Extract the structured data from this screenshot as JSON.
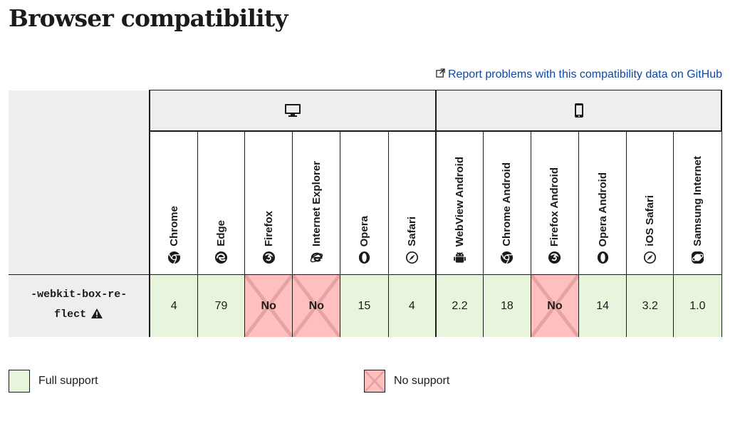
{
  "page": {
    "heading": "Browser compatibility"
  },
  "report_link": {
    "label": "Report problems with this compatibility data on GitHub",
    "icon": "external-link-icon"
  },
  "platforms": {
    "desktop": {
      "icon": "desktop-icon"
    },
    "mobile": {
      "icon": "mobile-icon"
    }
  },
  "browsers": [
    {
      "name": "Chrome",
      "icon": "chrome-icon",
      "platform": "desktop"
    },
    {
      "name": "Edge",
      "icon": "edge-icon",
      "platform": "desktop"
    },
    {
      "name": "Firefox",
      "icon": "firefox-icon",
      "platform": "desktop"
    },
    {
      "name": "Internet Explorer",
      "icon": "internet-explorer-icon",
      "platform": "desktop"
    },
    {
      "name": "Opera",
      "icon": "opera-icon",
      "platform": "desktop"
    },
    {
      "name": "Safari",
      "icon": "safari-icon",
      "platform": "desktop"
    },
    {
      "name": "WebView Android",
      "icon": "android-icon",
      "platform": "mobile"
    },
    {
      "name": "Chrome Android",
      "icon": "chrome-icon",
      "platform": "mobile"
    },
    {
      "name": "Firefox Android",
      "icon": "firefox-icon",
      "platform": "mobile"
    },
    {
      "name": "Opera Android",
      "icon": "opera-icon",
      "platform": "mobile"
    },
    {
      "name": "iOS Safari",
      "icon": "safari-icon",
      "platform": "mobile"
    },
    {
      "name": "Samsung Internet",
      "icon": "samsung-internet-icon",
      "platform": "mobile"
    }
  ],
  "feature": {
    "name_line1": "-webkit-box-re-",
    "name_line2": "flect",
    "warning_icon": "warning-icon",
    "support": [
      {
        "value": "4",
        "status": "yes"
      },
      {
        "value": "79",
        "status": "yes"
      },
      {
        "value": "No",
        "status": "no"
      },
      {
        "value": "No",
        "status": "no"
      },
      {
        "value": "15",
        "status": "yes"
      },
      {
        "value": "4",
        "status": "yes"
      },
      {
        "value": "2.2",
        "status": "yes"
      },
      {
        "value": "18",
        "status": "yes"
      },
      {
        "value": "No",
        "status": "no"
      },
      {
        "value": "14",
        "status": "yes"
      },
      {
        "value": "3.2",
        "status": "yes"
      },
      {
        "value": "1.0",
        "status": "yes"
      }
    ]
  },
  "legend": {
    "full_support": "Full support",
    "no_support": "No support"
  },
  "colors": {
    "full_support_bg": "#e6f5dc",
    "no_support_bg": "#ffbfbf",
    "link": "#0c48a8",
    "header_bg": "#eeeeee"
  }
}
